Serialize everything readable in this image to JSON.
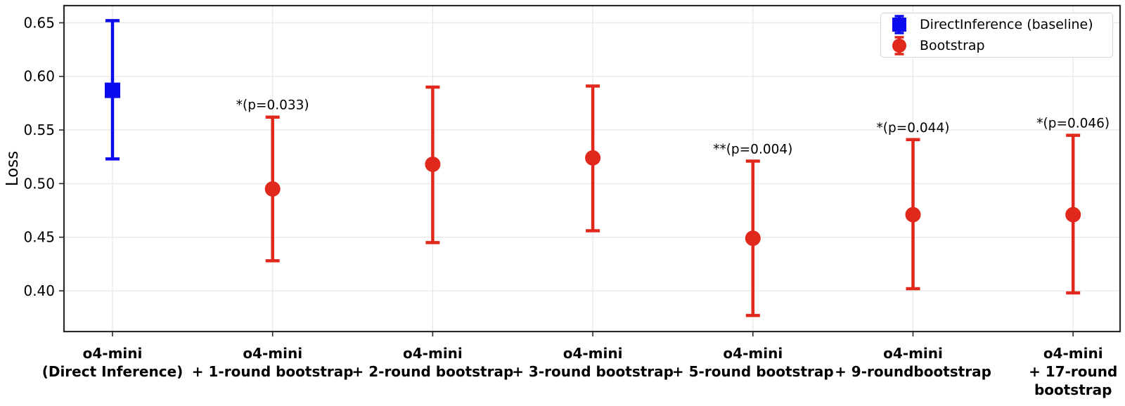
{
  "chart_data": {
    "type": "errorbar",
    "title": "",
    "xlabel": "",
    "ylabel": "Loss",
    "ylim": [
      0.362,
      0.666
    ],
    "yticks": [
      0.4,
      0.45,
      0.5,
      0.55,
      0.6,
      0.65
    ],
    "ytick_labels": [
      "0.40",
      "0.45",
      "0.50",
      "0.55",
      "0.60",
      "0.65"
    ],
    "grid": true,
    "categories": [
      [
        "o4-mini",
        "(Direct Inference)"
      ],
      [
        "o4-mini",
        "+ 1-round bootstrap"
      ],
      [
        "o4-mini",
        "+ 2-round bootstrap"
      ],
      [
        "o4-mini",
        "+ 3-round bootstrap"
      ],
      [
        "o4-mini",
        "+ 5-round bootstrap"
      ],
      [
        "o4-mini",
        "+ 9-roundbootstrap"
      ],
      [
        "o4-mini",
        "+ 17-round",
        "bootstrap"
      ]
    ],
    "series": [
      {
        "name": "DirectInference (baseline)",
        "marker": "square",
        "color": "#0b0bee",
        "points": [
          {
            "category_index": 0,
            "mean": 0.587,
            "lo": 0.523,
            "hi": 0.652,
            "annotation": null
          }
        ]
      },
      {
        "name": "Bootstrap",
        "marker": "circle",
        "color": "#e0281c",
        "points": [
          {
            "category_index": 1,
            "mean": 0.495,
            "lo": 0.428,
            "hi": 0.562,
            "annotation": "*(p=0.033)"
          },
          {
            "category_index": 2,
            "mean": 0.518,
            "lo": 0.445,
            "hi": 0.59,
            "annotation": null
          },
          {
            "category_index": 3,
            "mean": 0.524,
            "lo": 0.456,
            "hi": 0.591,
            "annotation": null
          },
          {
            "category_index": 4,
            "mean": 0.449,
            "lo": 0.377,
            "hi": 0.521,
            "annotation": "**(p=0.004)"
          },
          {
            "category_index": 5,
            "mean": 0.471,
            "lo": 0.402,
            "hi": 0.541,
            "annotation": "*(p=0.044)"
          },
          {
            "category_index": 6,
            "mean": 0.471,
            "lo": 0.398,
            "hi": 0.545,
            "annotation": "*(p=0.046)"
          }
        ]
      }
    ],
    "legend": {
      "position": "upper right",
      "items": [
        {
          "label": "DirectInference (baseline)",
          "marker": "square",
          "color": "#0b0bee"
        },
        {
          "label": "Bootstrap",
          "marker": "circle",
          "color": "#e0281c"
        }
      ]
    },
    "colors": {
      "baseline": "#0b0bee",
      "bootstrap": "#e0281c",
      "grid": "#e8e8e8",
      "frame": "#2b2b2b",
      "text": "#000000"
    }
  }
}
